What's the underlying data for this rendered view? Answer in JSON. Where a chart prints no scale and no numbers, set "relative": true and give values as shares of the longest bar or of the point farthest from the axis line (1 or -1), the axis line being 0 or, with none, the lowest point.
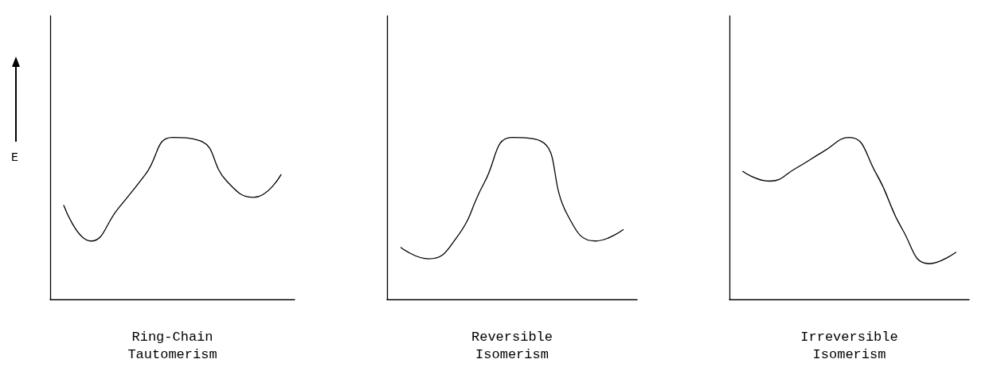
{
  "chart_data": [
    {
      "type": "line",
      "relative": true,
      "xlabel": "Ring-Chain\nTautomerism",
      "ylabel": "E",
      "categories": [
        null,
        null,
        null,
        null,
        null,
        null,
        null,
        null,
        null
      ],
      "series": [
        {
          "color": "#000000",
          "values": [
            0.58,
            0.36,
            0.56,
            0.77,
            1.0,
            0.98,
            0.73,
            0.63,
            0.77
          ]
        }
      ]
    },
    {
      "type": "line",
      "relative": true,
      "xlabel": "Reversible\nIsomerism",
      "categories": [
        null,
        null,
        null,
        null,
        null,
        null,
        null,
        null,
        null
      ],
      "series": [
        {
          "color": "#000000",
          "values": [
            0.32,
            0.25,
            0.38,
            0.72,
            1.0,
            0.98,
            0.52,
            0.36,
            0.43
          ]
        }
      ]
    },
    {
      "type": "line",
      "relative": true,
      "xlabel": "Irreversible\nIsomerism",
      "categories": [
        null,
        null,
        null,
        null,
        null,
        null,
        null,
        null,
        null
      ],
      "series": [
        {
          "color": "#000000",
          "values": [
            0.79,
            0.73,
            0.81,
            0.91,
            1.0,
            0.78,
            0.43,
            0.22,
            0.29
          ]
        }
      ]
    }
  ]
}
